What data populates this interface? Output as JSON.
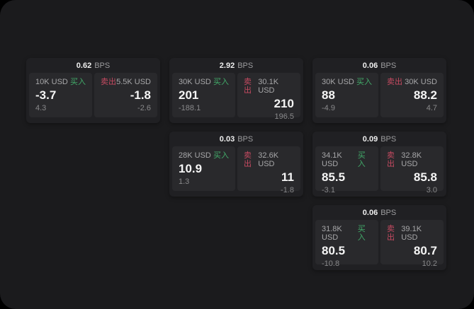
{
  "labels": {
    "bps_unit": "BPS",
    "buy": "买入",
    "sell": "卖出"
  },
  "colors": {
    "background": "#000000",
    "frame": "#1b1b1d",
    "card": "#202023",
    "panel": "#29292c",
    "buy_accent": "#42ab6a",
    "sell_accent": "#c64a61",
    "price_text": "#f5f5f5",
    "muted_text": "#9c9c9e"
  },
  "cards": [
    {
      "bps": "0.62",
      "buy": {
        "size": "10K USD",
        "price": "-3.7",
        "change": "4.3"
      },
      "sell": {
        "size": "5.5K USD",
        "price": "-1.8",
        "change": "-2.6"
      }
    },
    {
      "bps": "2.92",
      "buy": {
        "size": "30K USD",
        "price": "201",
        "change": "-188.1"
      },
      "sell": {
        "size": "30.1K USD",
        "price": "210",
        "change": "196.5"
      }
    },
    {
      "bps": "0.06",
      "buy": {
        "size": "30K USD",
        "price": "88",
        "change": "-4.9"
      },
      "sell": {
        "size": "30K USD",
        "price": "88.2",
        "change": "4.7"
      }
    },
    {
      "bps": "0.03",
      "buy": {
        "size": "28K USD",
        "price": "10.9",
        "change": "1.3"
      },
      "sell": {
        "size": "32.6K USD",
        "price": "11",
        "change": "-1.8"
      }
    },
    {
      "bps": "0.09",
      "buy": {
        "size": "34.1K USD",
        "price": "85.5",
        "change": "-3.1"
      },
      "sell": {
        "size": "32.8K USD",
        "price": "85.8",
        "change": "3.0"
      }
    },
    {
      "bps": "0.06",
      "buy": {
        "size": "31.8K USD",
        "price": "80.5",
        "change": "-10.8"
      },
      "sell": {
        "size": "39.1K USD",
        "price": "80.7",
        "change": "10.2"
      }
    }
  ]
}
